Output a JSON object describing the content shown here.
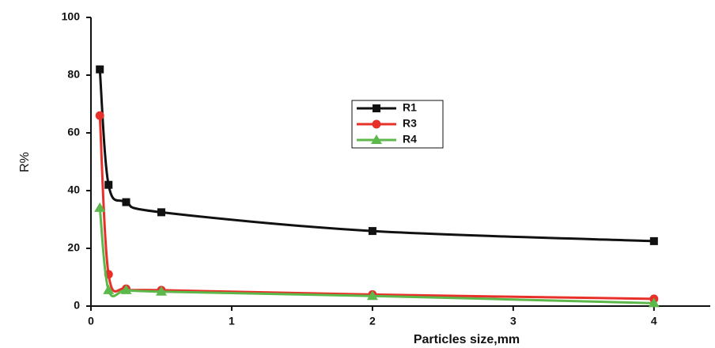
{
  "chart_data": {
    "type": "line",
    "x_label": "Particles size,mm",
    "y_label": "R%",
    "x": [
      0.063,
      0.125,
      0.25,
      0.5,
      2,
      4
    ],
    "series": [
      {
        "name": "R1",
        "color": "#111111",
        "marker": "square",
        "values": [
          82,
          42,
          36,
          32.5,
          26,
          22.5
        ]
      },
      {
        "name": "R3",
        "color": "#e8302a",
        "marker": "circle",
        "values": [
          66,
          11,
          6,
          5.5,
          4,
          2.5
        ]
      },
      {
        "name": "R4",
        "color": "#5cb84a",
        "marker": "triangle",
        "values": [
          34,
          5.5,
          5.5,
          5,
          3.5,
          1
        ]
      }
    ],
    "xlim": [
      0,
      4.4
    ],
    "xticks": [
      0,
      1,
      2,
      3,
      4
    ],
    "ylim": [
      0,
      100
    ],
    "yticks": [
      0,
      20,
      40,
      60,
      80,
      100
    ],
    "grid": false,
    "legend": "center"
  }
}
